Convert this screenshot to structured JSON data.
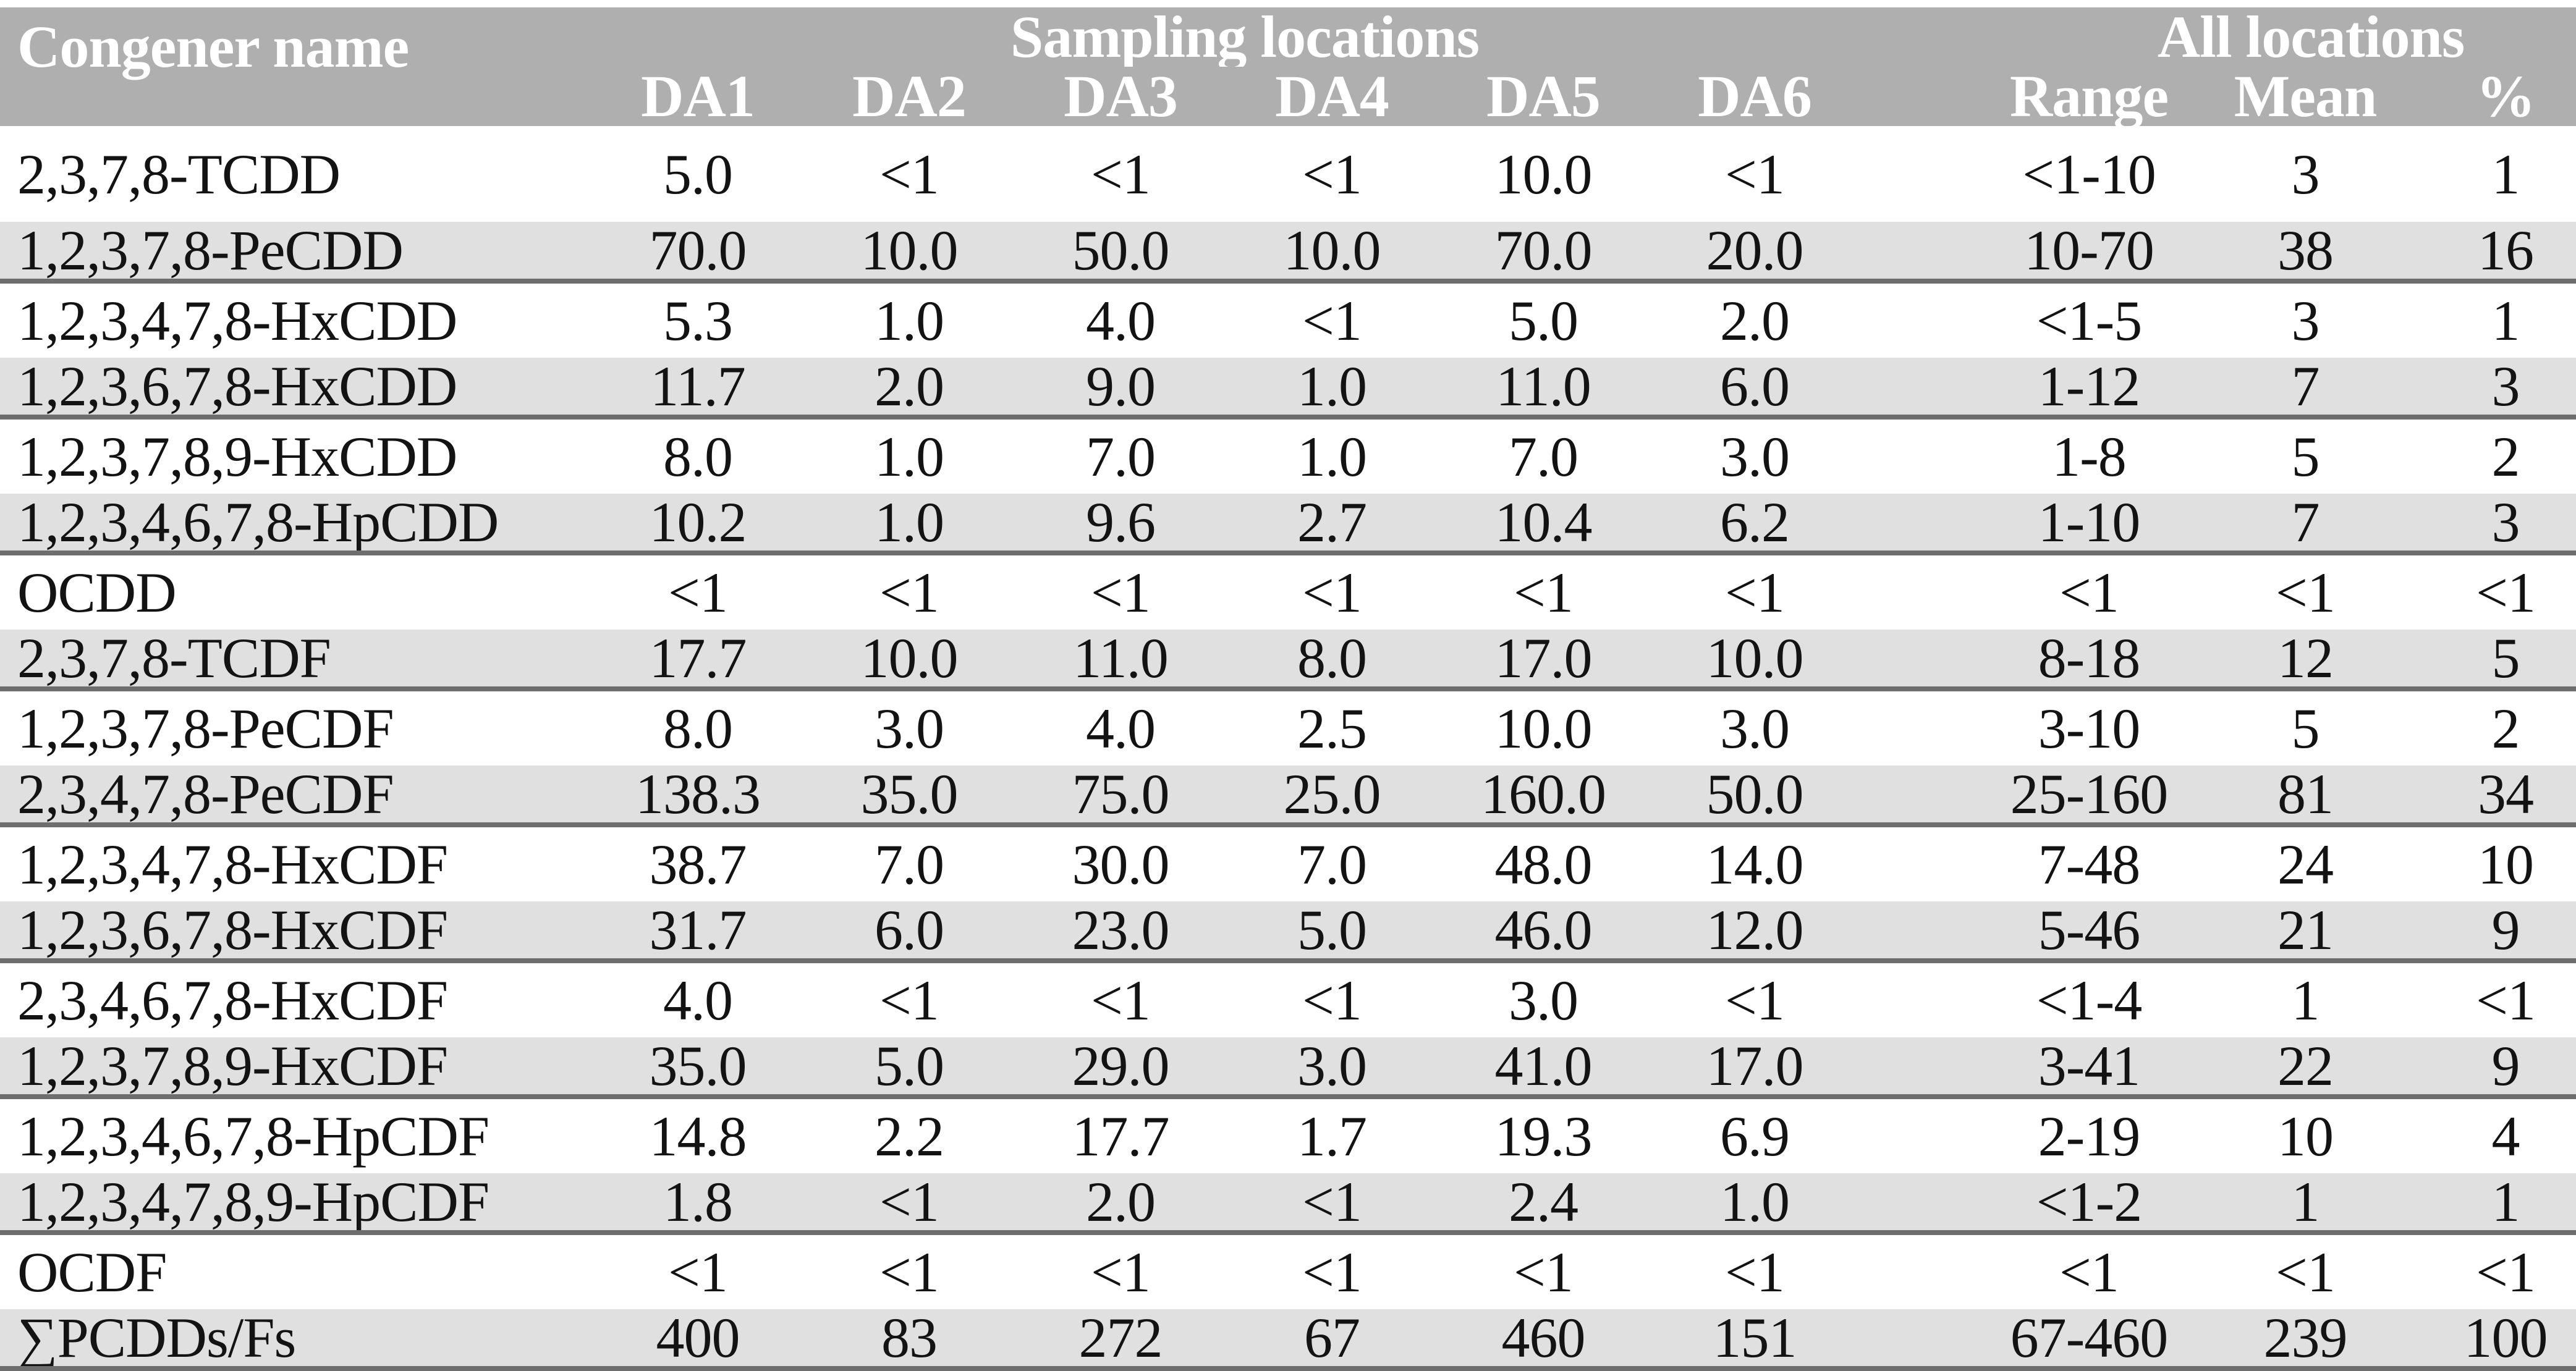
{
  "colors": {
    "header_bg": "#afafaf",
    "row_stripe": "#e0e0e0",
    "rule": "#6e6e6e",
    "text": "#131313",
    "header_text": "#ffffff"
  },
  "header": {
    "congener_label": "Congener name",
    "sampling_group_label": "Sampling locations",
    "all_group_label": "All locations",
    "columns": [
      "DA1",
      "DA2",
      "DA3",
      "DA4",
      "DA5",
      "DA6",
      "Range",
      "Mean",
      "%"
    ]
  },
  "rows": [
    {
      "name": "2,3,7,8-TCDD",
      "values": [
        "5.0",
        "<1",
        "<1",
        "<1",
        "10.0",
        "<1",
        "<1-10",
        "3",
        "1"
      ]
    },
    {
      "name": "1,2,3,7,8-PeCDD",
      "values": [
        "70.0",
        "10.0",
        "50.0",
        "10.0",
        "70.0",
        "20.0",
        "10-70",
        "38",
        "16"
      ]
    },
    {
      "name": "1,2,3,4,7,8-HxCDD",
      "values": [
        "5.3",
        "1.0",
        "4.0",
        "<1",
        "5.0",
        "2.0",
        "<1-5",
        "3",
        "1"
      ]
    },
    {
      "name": "1,2,3,6,7,8-HxCDD",
      "values": [
        "11.7",
        "2.0",
        "9.0",
        "1.0",
        "11.0",
        "6.0",
        "1-12",
        "7",
        "3"
      ]
    },
    {
      "name": "1,2,3,7,8,9-HxCDD",
      "values": [
        "8.0",
        "1.0",
        "7.0",
        "1.0",
        "7.0",
        "3.0",
        "1-8",
        "5",
        "2"
      ]
    },
    {
      "name": "1,2,3,4,6,7,8-HpCDD",
      "values": [
        "10.2",
        "1.0",
        "9.6",
        "2.7",
        "10.4",
        "6.2",
        "1-10",
        "7",
        "3"
      ]
    },
    {
      "name": "OCDD",
      "values": [
        "<1",
        "<1",
        "<1",
        "<1",
        "<1",
        "<1",
        "<1",
        "<1",
        "<1"
      ]
    },
    {
      "name": "2,3,7,8-TCDF",
      "values": [
        "17.7",
        "10.0",
        "11.0",
        "8.0",
        "17.0",
        "10.0",
        "8-18",
        "12",
        "5"
      ]
    },
    {
      "name": "1,2,3,7,8-PeCDF",
      "values": [
        "8.0",
        "3.0",
        "4.0",
        "2.5",
        "10.0",
        "3.0",
        "3-10",
        "5",
        "2"
      ]
    },
    {
      "name": "2,3,4,7,8-PeCDF",
      "values": [
        "138.3",
        "35.0",
        "75.0",
        "25.0",
        "160.0",
        "50.0",
        "25-160",
        "81",
        "34"
      ]
    },
    {
      "name": "1,2,3,4,7,8-HxCDF",
      "values": [
        "38.7",
        "7.0",
        "30.0",
        "7.0",
        "48.0",
        "14.0",
        "7-48",
        "24",
        "10"
      ]
    },
    {
      "name": "1,2,3,6,7,8-HxCDF",
      "values": [
        "31.7",
        "6.0",
        "23.0",
        "5.0",
        "46.0",
        "12.0",
        "5-46",
        "21",
        "9"
      ]
    },
    {
      "name": "2,3,4,6,7,8-HxCDF",
      "values": [
        "4.0",
        "<1",
        "<1",
        "<1",
        "3.0",
        "<1",
        "<1-4",
        "1",
        "<1"
      ]
    },
    {
      "name": "1,2,3,7,8,9-HxCDF",
      "values": [
        "35.0",
        "5.0",
        "29.0",
        "3.0",
        "41.0",
        "17.0",
        "3-41",
        "22",
        "9"
      ]
    },
    {
      "name": "1,2,3,4,6,7,8-HpCDF",
      "values": [
        "14.8",
        "2.2",
        "17.7",
        "1.7",
        "19.3",
        "6.9",
        "2-19",
        "10",
        "4"
      ]
    },
    {
      "name": "1,2,3,4,7,8,9-HpCDF",
      "values": [
        "1.8",
        "<1",
        "2.0",
        "<1",
        "2.4",
        "1.0",
        "<1-2",
        "1",
        "1"
      ]
    },
    {
      "name": "OCDF",
      "values": [
        "<1",
        "<1",
        "<1",
        "<1",
        "<1",
        "<1",
        "<1",
        "<1",
        "<1"
      ]
    },
    {
      "name": "∑PCDDs/Fs",
      "values": [
        "400",
        "83",
        "272",
        "67",
        "460",
        "151",
        "67-460",
        "239",
        "100"
      ]
    }
  ]
}
